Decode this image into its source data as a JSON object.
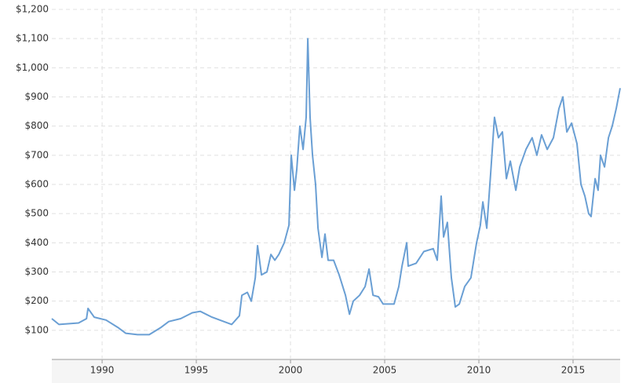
{
  "chart_data": {
    "type": "line",
    "x": [
      1987.33,
      1987.71,
      1988.75,
      1989.17,
      1989.25,
      1989.58,
      1990.21,
      1990.83,
      1991.25,
      1991.88,
      1992.5,
      1993.13,
      1993.54,
      1994.17,
      1994.79,
      1995.21,
      1995.83,
      1996.46,
      1996.88,
      1997.29,
      1997.42,
      1997.71,
      1997.92,
      1998.13,
      1998.25,
      1998.46,
      1998.75,
      1998.96,
      1999.17,
      1999.38,
      1999.67,
      1999.92,
      2000.04,
      2000.21,
      2000.33,
      2000.5,
      2000.67,
      2000.83,
      2000.92,
      2001.04,
      2001.17,
      2001.33,
      2001.46,
      2001.67,
      2001.83,
      2002.0,
      2002.29,
      2002.58,
      2002.92,
      2003.13,
      2003.33,
      2003.67,
      2003.96,
      2004.17,
      2004.38,
      2004.67,
      2004.92,
      2005.21,
      2005.5,
      2005.75,
      2005.92,
      2006.17,
      2006.25,
      2006.67,
      2007.08,
      2007.58,
      2007.79,
      2008.0,
      2008.13,
      2008.33,
      2008.54,
      2008.75,
      2008.96,
      2009.25,
      2009.58,
      2009.88,
      2010.08,
      2010.21,
      2010.42,
      2010.63,
      2010.83,
      2011.04,
      2011.25,
      2011.46,
      2011.67,
      2011.96,
      2012.17,
      2012.5,
      2012.83,
      2013.08,
      2013.33,
      2013.63,
      2013.96,
      2014.25,
      2014.46,
      2014.67,
      2014.92,
      2015.21,
      2015.42,
      2015.63,
      2015.83,
      2015.96,
      2016.17,
      2016.33,
      2016.46,
      2016.67,
      2016.88,
      2017.08,
      2017.29,
      2017.5
    ],
    "series": [
      {
        "color": "#6a9fd4",
        "values": [
          140,
          120,
          125,
          140,
          175,
          145,
          135,
          110,
          90,
          85,
          85,
          110,
          130,
          140,
          160,
          165,
          145,
          130,
          120,
          150,
          220,
          230,
          200,
          280,
          390,
          290,
          300,
          360,
          340,
          360,
          400,
          460,
          700,
          580,
          650,
          800,
          720,
          830,
          1100,
          830,
          700,
          600,
          450,
          350,
          430,
          340,
          340,
          290,
          220,
          155,
          200,
          220,
          250,
          310,
          220,
          215,
          190,
          190,
          190,
          250,
          320,
          400,
          320,
          330,
          370,
          380,
          340,
          560,
          420,
          470,
          280,
          180,
          190,
          250,
          280,
          400,
          460,
          540,
          450,
          640,
          830,
          760,
          780,
          620,
          680,
          580,
          660,
          720,
          760,
          700,
          770,
          720,
          760,
          860,
          900,
          780,
          810,
          740,
          600,
          560,
          500,
          490,
          620,
          580,
          700,
          660,
          760,
          800,
          860,
          930
        ]
      }
    ],
    "xlim": [
      1987.33,
      2017.5
    ],
    "xticks": [
      1990,
      1995,
      2000,
      2005,
      2010,
      2015
    ],
    "ylim": [
      0,
      1200
    ],
    "yticks": [
      {
        "value": 100,
        "label": "$100"
      },
      {
        "value": 200,
        "label": "$200"
      },
      {
        "value": 300,
        "label": "$300"
      },
      {
        "value": 400,
        "label": "$400"
      },
      {
        "value": 500,
        "label": "$500"
      },
      {
        "value": 600,
        "label": "$600"
      },
      {
        "value": 700,
        "label": "$700"
      },
      {
        "value": 800,
        "label": "$800"
      },
      {
        "value": 900,
        "label": "$900"
      },
      {
        "value": 1000,
        "label": "$1,000"
      },
      {
        "value": 1100,
        "label": "$1,100"
      },
      {
        "value": 1200,
        "label": "$1,200"
      }
    ],
    "grid": true
  }
}
